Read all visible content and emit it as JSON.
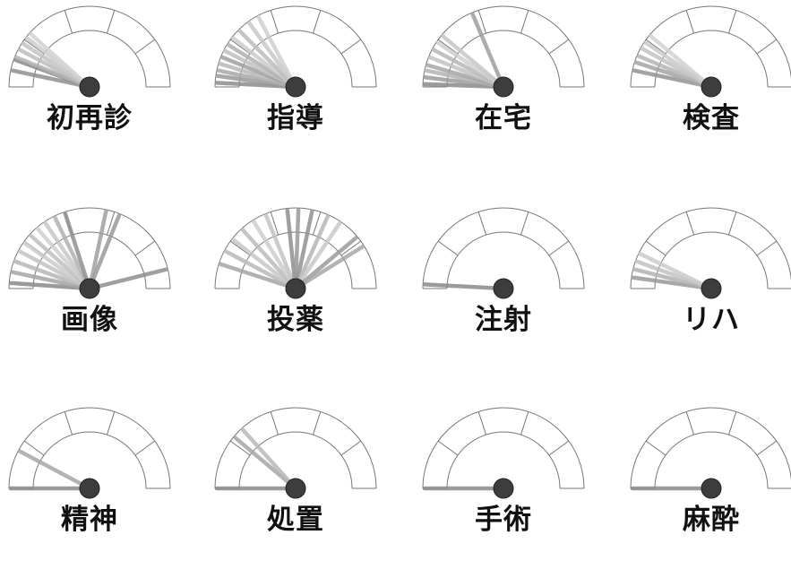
{
  "chart_data": [
    {
      "type": "gauge",
      "title": "初再診",
      "needles": [
        {
          "angle": 168,
          "color": "#909090"
        },
        {
          "angle": 160,
          "color": "#888888"
        },
        {
          "angle": 158,
          "color": "#b4b4b4"
        },
        {
          "angle": 152,
          "color": "#bdbdbd"
        },
        {
          "angle": 147,
          "color": "#c4c4c4"
        },
        {
          "angle": 142,
          "color": "#cdcdcd"
        },
        {
          "angle": 138,
          "color": "#d2d2d2"
        }
      ]
    },
    {
      "type": "gauge",
      "title": "指導",
      "needles": [
        {
          "angle": 177,
          "color": "#8c8c8c"
        },
        {
          "angle": 172,
          "color": "#9a9a9a"
        },
        {
          "angle": 168,
          "color": "#a9a9a9"
        },
        {
          "angle": 163,
          "color": "#b8b8b8"
        },
        {
          "angle": 158,
          "color": "#a0a0a0"
        },
        {
          "angle": 153,
          "color": "#c0c0c0"
        },
        {
          "angle": 148,
          "color": "#b0b0b0"
        },
        {
          "angle": 142,
          "color": "#cccccc"
        },
        {
          "angle": 135,
          "color": "#bcbcbc"
        },
        {
          "angle": 126,
          "color": "#c8c8c8"
        },
        {
          "angle": 118,
          "color": "#d0d0d0"
        }
      ]
    },
    {
      "type": "gauge",
      "title": "在宅",
      "needles": [
        {
          "angle": 178,
          "color": "#8a8a8a"
        },
        {
          "angle": 173,
          "color": "#9c9c9c"
        },
        {
          "angle": 168,
          "color": "#b3b3b3"
        },
        {
          "angle": 164,
          "color": "#a6a6a6"
        },
        {
          "angle": 158,
          "color": "#c2c2c2"
        },
        {
          "angle": 152,
          "color": "#b8b8b8"
        },
        {
          "angle": 146,
          "color": "#cfcfcf"
        },
        {
          "angle": 140,
          "color": "#c6c6c6"
        },
        {
          "angle": 113,
          "color": "#9e9e9e"
        }
      ]
    },
    {
      "type": "gauge",
      "title": "検査",
      "needles": [
        {
          "angle": 168,
          "color": "#949494"
        },
        {
          "angle": 162,
          "color": "#a4a4a4"
        },
        {
          "angle": 157,
          "color": "#b4b4b4"
        },
        {
          "angle": 151,
          "color": "#c2c2c2"
        },
        {
          "angle": 146,
          "color": "#cacaca"
        },
        {
          "angle": 140,
          "color": "#d2d2d2"
        }
      ]
    },
    {
      "type": "gauge",
      "title": "画像",
      "needles": [
        {
          "angle": 176,
          "color": "#8a8a8a"
        },
        {
          "angle": 168,
          "color": "#a5a5a5"
        },
        {
          "angle": 160,
          "color": "#b7b7b7"
        },
        {
          "angle": 152,
          "color": "#c3c3c3"
        },
        {
          "angle": 145,
          "color": "#cbcbcb"
        },
        {
          "angle": 138,
          "color": "#bfbfbf"
        },
        {
          "angle": 131,
          "color": "#d0d0d0"
        },
        {
          "angle": 124,
          "color": "#c7c7c7"
        },
        {
          "angle": 116,
          "color": "#b2b2b2"
        },
        {
          "angle": 108,
          "color": "#909090"
        },
        {
          "angle": 78,
          "color": "#a0a0a0"
        },
        {
          "angle": 68,
          "color": "#9a9a9a"
        },
        {
          "angle": 14,
          "color": "#8f8f8f"
        }
      ]
    },
    {
      "type": "gauge",
      "title": "投薬",
      "needles": [
        {
          "angle": 162,
          "color": "#a5a5a5"
        },
        {
          "angle": 152,
          "color": "#b9b9b9"
        },
        {
          "angle": 142,
          "color": "#c7c7c7"
        },
        {
          "angle": 132,
          "color": "#bcbcbc"
        },
        {
          "angle": 122,
          "color": "#cdcdcd"
        },
        {
          "angle": 112,
          "color": "#c2c2c2"
        },
        {
          "angle": 96,
          "color": "#8f8f8f"
        },
        {
          "angle": 88,
          "color": "#9a9a9a"
        },
        {
          "angle": 78,
          "color": "#929292"
        },
        {
          "angle": 66,
          "color": "#b6b6b6"
        },
        {
          "angle": 56,
          "color": "#c8c8c8"
        },
        {
          "angle": 40,
          "color": "#9c9c9c"
        },
        {
          "angle": 32,
          "color": "#a8a8a8"
        }
      ]
    },
    {
      "type": "gauge",
      "title": "注射",
      "needles": [
        {
          "angle": 177,
          "color": "#8a8a8a"
        }
      ]
    },
    {
      "type": "gauge",
      "title": "リハ",
      "needles": [
        {
          "angle": 172,
          "color": "#9a9a9a"
        },
        {
          "angle": 166,
          "color": "#b2b2b2"
        },
        {
          "angle": 160,
          "color": "#c2c2c2"
        },
        {
          "angle": 154,
          "color": "#cbcbcb"
        }
      ]
    },
    {
      "type": "gauge",
      "title": "精神",
      "needles": [
        {
          "angle": 180,
          "color": "#8a8a8a"
        },
        {
          "angle": 152,
          "color": "#a6a6a6"
        }
      ]
    },
    {
      "type": "gauge",
      "title": "処置",
      "needles": [
        {
          "angle": 180,
          "color": "#8a8a8a"
        },
        {
          "angle": 140,
          "color": "#a6a6a6"
        },
        {
          "angle": 132,
          "color": "#b8b8b8"
        }
      ]
    },
    {
      "type": "gauge",
      "title": "手術",
      "needles": [
        {
          "angle": 180,
          "color": "#8a8a8a"
        }
      ]
    },
    {
      "type": "gauge",
      "title": "麻酔",
      "needles": [
        {
          "angle": 180,
          "color": "#8a8a8a"
        }
      ]
    }
  ]
}
